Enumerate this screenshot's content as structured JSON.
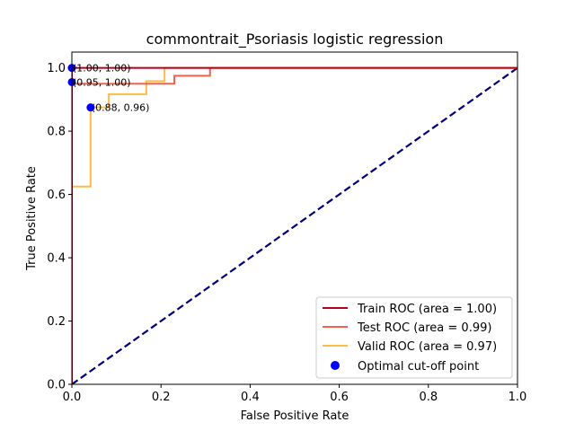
{
  "chart_data": {
    "type": "line",
    "title": "commontrait_Psoriasis logistic regression",
    "xlabel": "False Positive Rate",
    "ylabel": "True Positive Rate",
    "xlim": [
      0,
      1
    ],
    "ylim": [
      0,
      1.05
    ],
    "xticks": [
      0.0,
      0.2,
      0.4,
      0.6,
      0.8,
      1.0
    ],
    "xtick_labels": [
      "0.0",
      "0.2",
      "0.4",
      "0.6",
      "0.8",
      "1.0"
    ],
    "yticks": [
      0.0,
      0.2,
      0.4,
      0.6,
      0.8,
      1.0
    ],
    "ytick_labels": [
      "0.0",
      "0.2",
      "0.4",
      "0.6",
      "0.8",
      "1.0"
    ],
    "legend_position": "lower-right",
    "series": [
      {
        "name": "Train ROC (area = 1.00)",
        "color": "#b2001e",
        "x": [
          0,
          0,
          0.21,
          0.21,
          1
        ],
        "y": [
          0,
          1.0,
          1.0,
          1.0,
          1.0
        ]
      },
      {
        "name": "Test ROC (area = 0.99)",
        "color": "#f4604b",
        "x": [
          0,
          0,
          0.23,
          0.23,
          0.31,
          0.31,
          1
        ],
        "y": [
          0,
          0.95,
          0.95,
          0.975,
          0.975,
          1.0,
          1.0
        ]
      },
      {
        "name": "Valid ROC (area = 0.97)",
        "color": "#fcbb4a",
        "x": [
          0,
          0,
          0.042,
          0.042,
          0.083,
          0.083,
          0.167,
          0.167,
          0.208,
          0.208,
          1
        ],
        "y": [
          0,
          0.625,
          0.625,
          0.875,
          0.875,
          0.917,
          0.917,
          0.958,
          0.958,
          1.0,
          1.0
        ]
      }
    ],
    "reference_line": {
      "name": "chance",
      "color": "#00007f",
      "x": [
        0,
        1
      ],
      "y": [
        0,
        1
      ]
    },
    "optimal_points": {
      "name": "Optimal cut-off point",
      "color": "#0000ff",
      "points": [
        {
          "x": 0.0,
          "y": 1.0,
          "label": "(1.00, 1.00)"
        },
        {
          "x": 0.0,
          "y": 0.955,
          "label": "(0.95, 1.00)"
        },
        {
          "x": 0.042,
          "y": 0.875,
          "label": "(0.88, 0.96)"
        }
      ]
    }
  }
}
